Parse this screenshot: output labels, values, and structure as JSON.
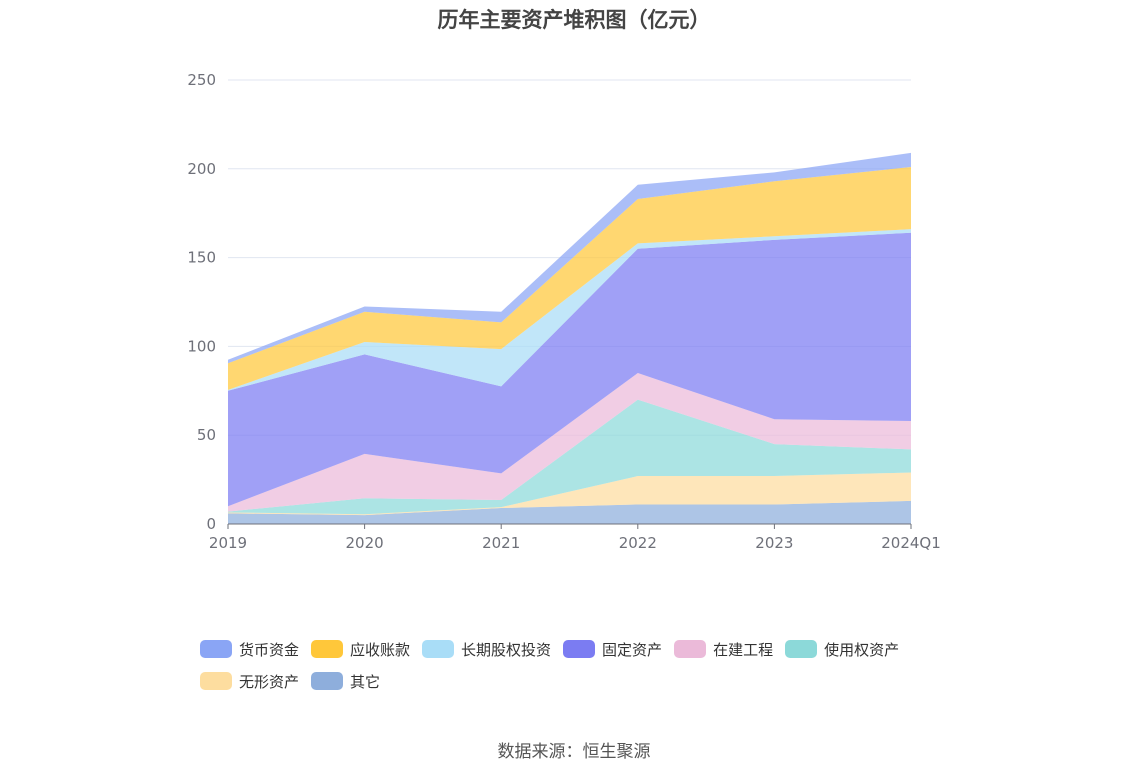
{
  "title": "历年主要资产堆积图（亿元）",
  "source_text": "数据来源：恒生聚源",
  "chart_data": {
    "type": "area",
    "stacked": true,
    "title": "历年主要资产堆积图（亿元）",
    "categories": [
      "2019",
      "2020",
      "2021",
      "2022",
      "2023",
      "2024Q1"
    ],
    "ylim": [
      0,
      250
    ],
    "yticks": [
      0,
      50,
      100,
      150,
      200,
      250
    ],
    "grid": true,
    "legend_position": "bottom",
    "series": [
      {
        "name": "其它",
        "color": "#8eaedc",
        "values": [
          6,
          5,
          9,
          11,
          11,
          13
        ]
      },
      {
        "name": "无形资产",
        "color": "#fddd9f",
        "values": [
          0.5,
          0.5,
          0.5,
          16,
          16,
          16
        ]
      },
      {
        "name": "使用权资产",
        "color": "#8cd9d9",
        "values": [
          0.5,
          9,
          4,
          43,
          18,
          13
        ]
      },
      {
        "name": "在建工程",
        "color": "#ebbad9",
        "values": [
          3,
          25,
          15,
          15,
          14,
          16
        ]
      },
      {
        "name": "固定资产",
        "color": "#7b7cf2",
        "values": [
          65,
          56,
          49,
          70,
          101,
          106
        ]
      },
      {
        "name": "长期股权投资",
        "color": "#a9ddf7",
        "values": [
          0.5,
          7,
          21,
          3,
          2,
          2
        ]
      },
      {
        "name": "应收账款",
        "color": "#ffc73a",
        "values": [
          15,
          17,
          15,
          25,
          31,
          35
        ]
      },
      {
        "name": "货币资金",
        "color": "#8aa5f5",
        "values": [
          2,
          3,
          6,
          8,
          5,
          8
        ]
      }
    ]
  },
  "legend_order": [
    "货币资金",
    "应收账款",
    "长期股权投资",
    "固定资产",
    "在建工程",
    "使用权资产",
    "无形资产",
    "其它"
  ]
}
